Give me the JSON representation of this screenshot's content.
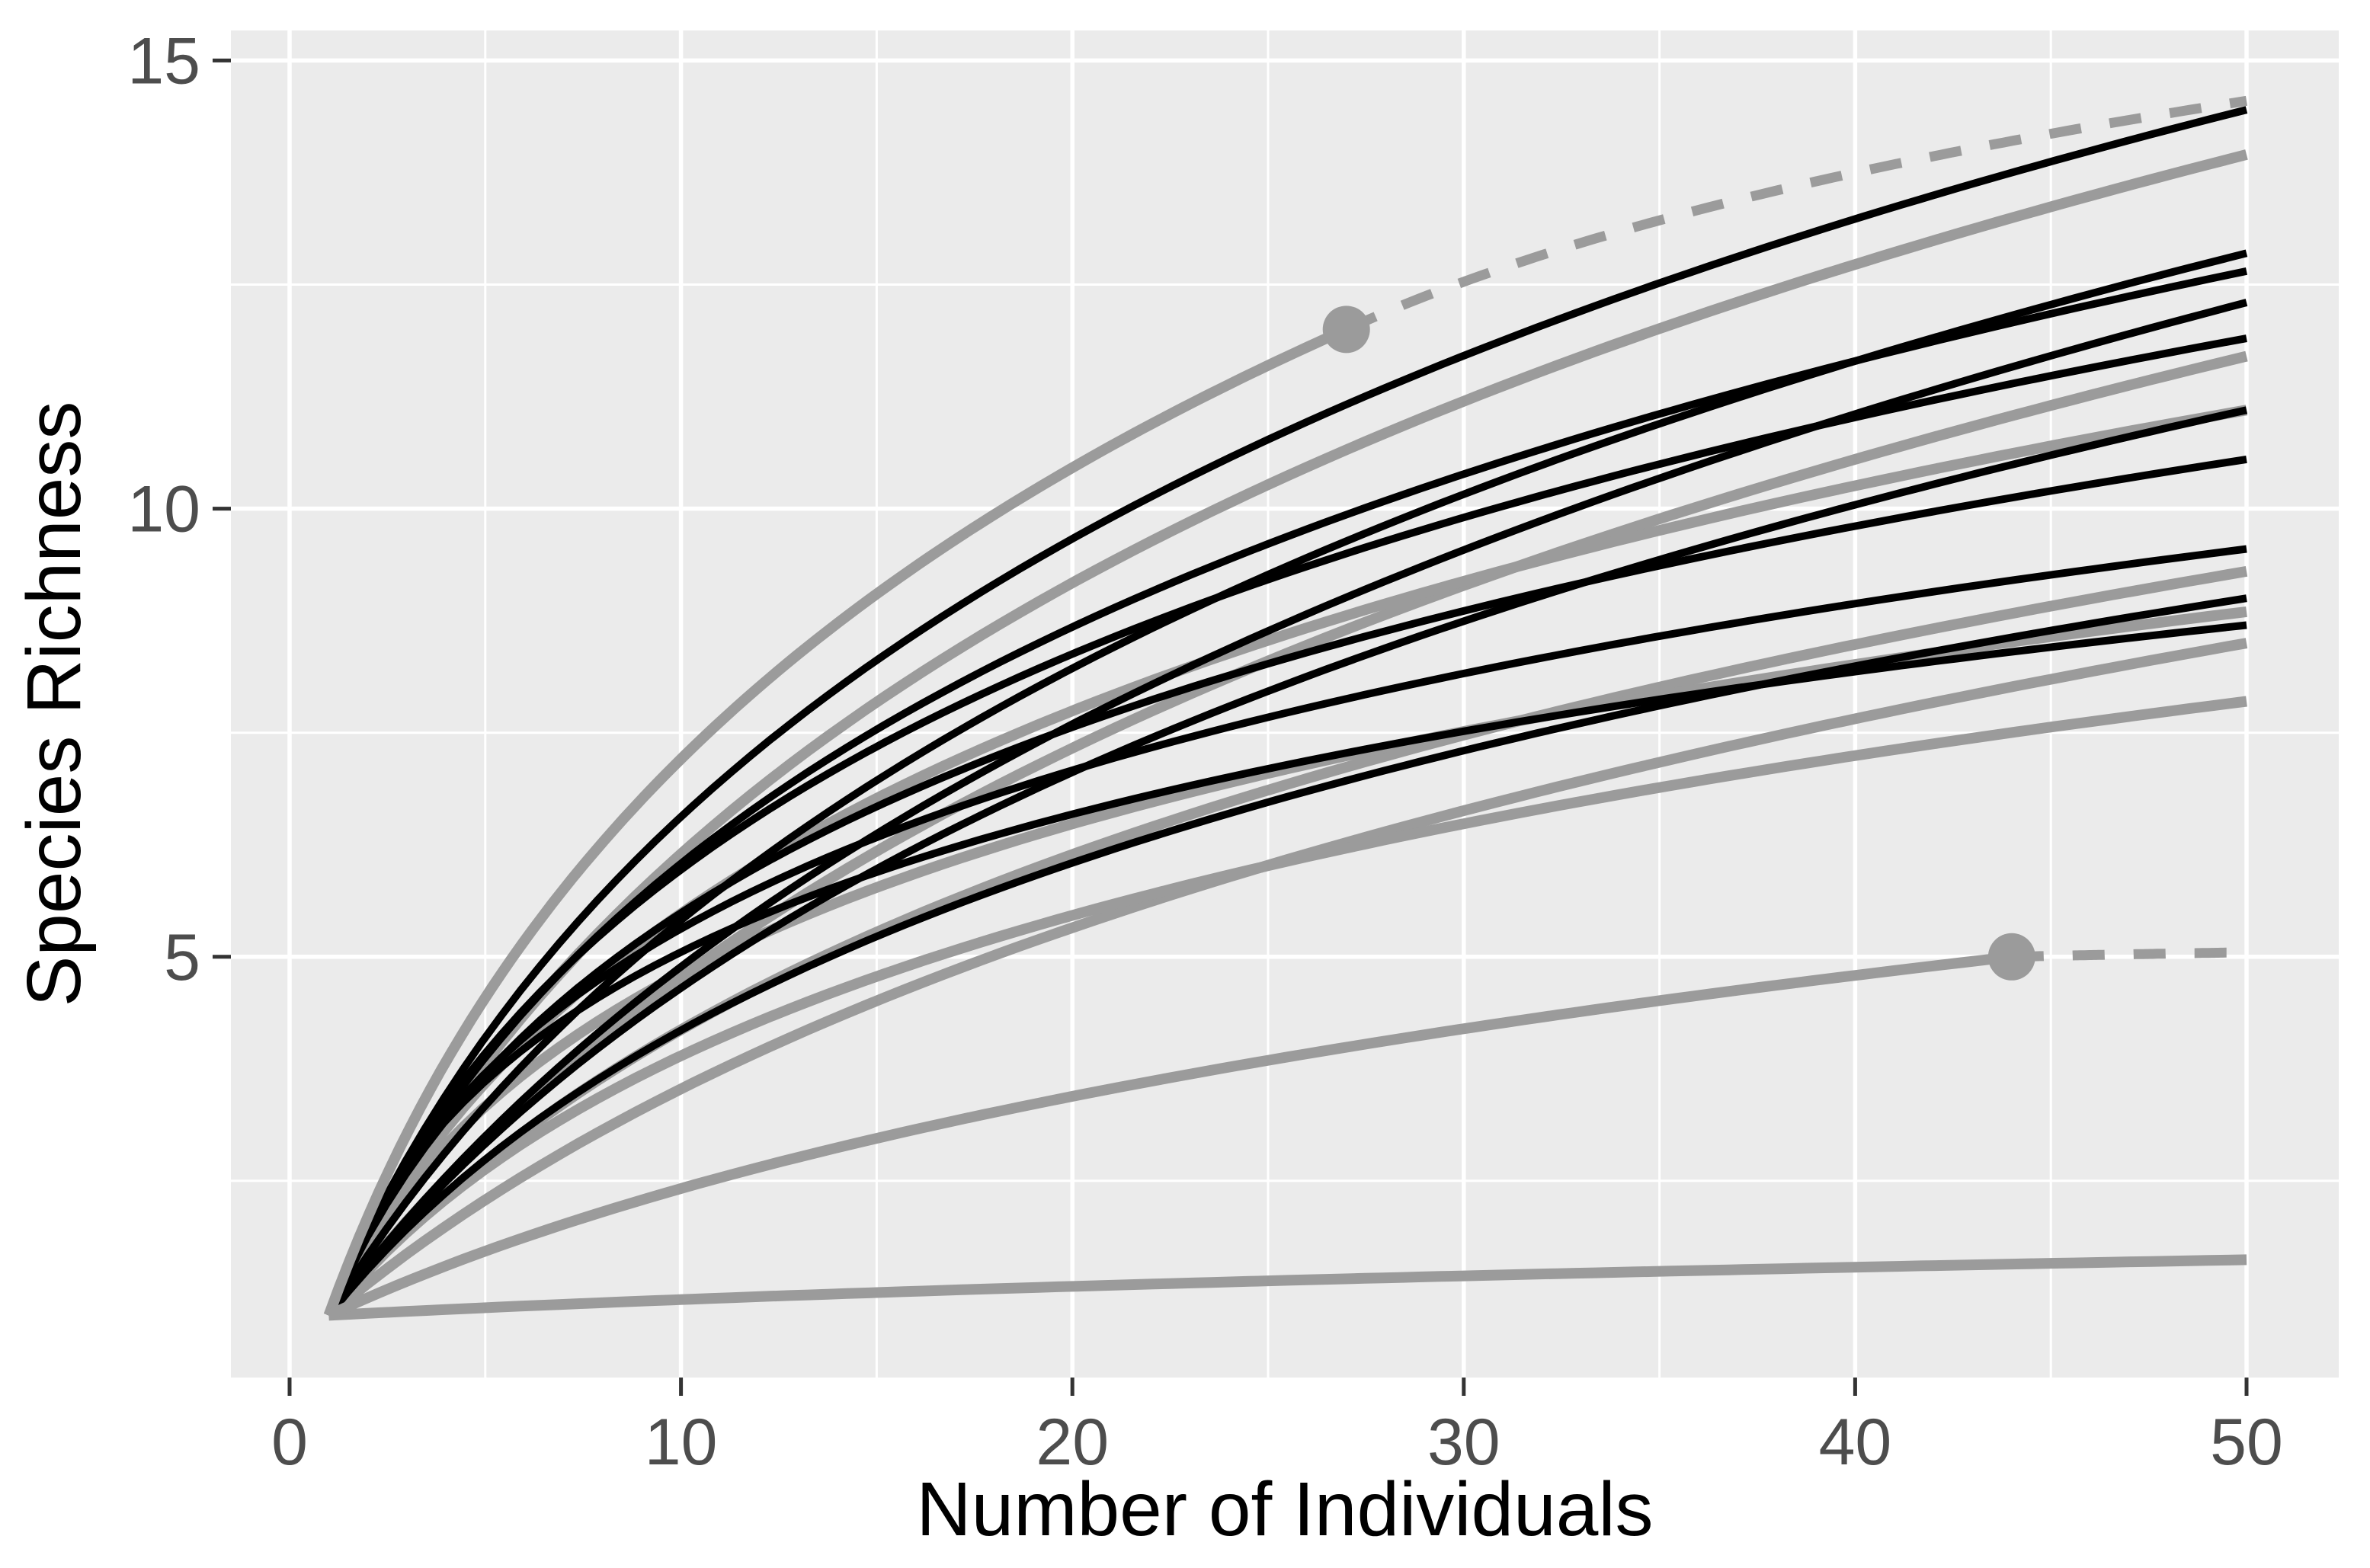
{
  "chart_data": {
    "type": "line",
    "title": "",
    "xlabel": "Number of Individuals",
    "ylabel": "Species Richness",
    "x_ticks": [
      0,
      10,
      20,
      30,
      40,
      50
    ],
    "y_ticks": [
      5,
      10,
      15
    ],
    "x_minor_gridlines": [
      5,
      15,
      25,
      35,
      45
    ],
    "y_minor_gridlines": [
      2.5,
      7.5,
      12.5
    ],
    "xlim": [
      -1.5,
      52.4
    ],
    "ylim": [
      0.3,
      15.34
    ],
    "grid": "on",
    "legend": "none",
    "colors": {
      "panel_background": "#EBEBEB",
      "gridline": "#FFFFFF",
      "black_series": "#000000",
      "grey_series": "#9B9B9B",
      "tick_text": "#4D4D4D",
      "tick_mark": "#333333",
      "axis_title_text": "#000000"
    },
    "description": "Individual-based rarefaction curves of species richness; solid lines are interpolated richness (black and grey site groups), dots mark observed sample size, dashed grey lines are extrapolations.",
    "curves": [
      {
        "name": "grey-1",
        "color": "grey",
        "style": "solid",
        "x": [
          1,
          50
        ],
        "y": [
          1,
          13.95
        ],
        "shape_b": 7
      },
      {
        "name": "grey-3",
        "color": "grey",
        "style": "solid",
        "x": [
          1,
          50
        ],
        "y": [
          1,
          11.7
        ],
        "shape_b": 11
      },
      {
        "name": "grey-4",
        "color": "grey",
        "style": "solid",
        "x": [
          1,
          50
        ],
        "y": [
          1,
          11.1
        ],
        "shape_b": 4.5
      },
      {
        "name": "grey-5",
        "color": "grey",
        "style": "solid",
        "x": [
          1,
          50
        ],
        "y": [
          1,
          9.3
        ],
        "shape_b": 8
      },
      {
        "name": "grey-6",
        "color": "grey",
        "style": "solid",
        "x": [
          1,
          50
        ],
        "y": [
          1,
          8.85
        ],
        "shape_b": 3
      },
      {
        "name": "grey-7",
        "color": "grey",
        "style": "solid",
        "x": [
          1,
          50
        ],
        "y": [
          1,
          8.5
        ],
        "shape_b": 13
      },
      {
        "name": "grey-8",
        "color": "grey",
        "style": "solid",
        "x": [
          1,
          50
        ],
        "y": [
          1,
          7.85
        ],
        "shape_b": 5.5
      },
      {
        "name": "grey-10",
        "color": "grey",
        "style": "solid",
        "x": [
          1,
          50
        ],
        "y": [
          1,
          1.62
        ],
        "shape_b": 25
      },
      {
        "name": "black-1",
        "color": "black",
        "style": "solid",
        "x": [
          1,
          50
        ],
        "y": [
          1,
          14.45
        ],
        "shape_b": 6
      },
      {
        "name": "black-2",
        "color": "black",
        "style": "solid",
        "x": [
          1,
          50
        ],
        "y": [
          1,
          12.85
        ],
        "shape_b": 9
      },
      {
        "name": "black-3",
        "color": "black",
        "style": "solid",
        "x": [
          1,
          50
        ],
        "y": [
          1,
          12.65
        ],
        "shape_b": 5
      },
      {
        "name": "black-4",
        "color": "black",
        "style": "solid",
        "x": [
          1,
          50
        ],
        "y": [
          1,
          12.3
        ],
        "shape_b": 12
      },
      {
        "name": "black-5",
        "color": "black",
        "style": "solid",
        "x": [
          1,
          50
        ],
        "y": [
          1,
          11.9
        ],
        "shape_b": 4
      },
      {
        "name": "black-6",
        "color": "black",
        "style": "solid",
        "x": [
          1,
          50
        ],
        "y": [
          1,
          11.1
        ],
        "shape_b": 10
      },
      {
        "name": "black-7",
        "color": "black",
        "style": "solid",
        "x": [
          1,
          50
        ],
        "y": [
          1,
          10.55
        ],
        "shape_b": 3.5
      },
      {
        "name": "black-8",
        "color": "black",
        "style": "solid",
        "x": [
          1,
          50
        ],
        "y": [
          1,
          9.55
        ],
        "shape_b": 2.5
      },
      {
        "name": "black-9",
        "color": "black",
        "style": "solid",
        "x": [
          1,
          50
        ],
        "y": [
          1,
          9.0
        ],
        "shape_b": 7
      },
      {
        "name": "black-10",
        "color": "black",
        "style": "solid",
        "x": [
          1,
          50
        ],
        "y": [
          1,
          8.7
        ],
        "shape_b": 2
      },
      {
        "name": "grey-2-rarefaction",
        "color": "grey",
        "style": "solid",
        "x": [
          1,
          27
        ],
        "y": [
          1,
          12
        ],
        "shape_b": 5
      },
      {
        "name": "grey-9-rarefaction",
        "color": "grey",
        "style": "solid",
        "x": [
          1,
          44
        ],
        "y": [
          1,
          5
        ],
        "shape_b": 14
      },
      {
        "name": "grey-2-extrapolation",
        "color": "grey",
        "style": "dashed",
        "x": [
          27,
          50
        ],
        "y": [
          12,
          14.55
        ],
        "shape_b": 12
      },
      {
        "name": "grey-9-extrapolation",
        "color": "grey",
        "style": "dashed",
        "x": [
          44,
          50
        ],
        "y": [
          5,
          5.05
        ],
        "shape_b": 10
      }
    ],
    "points": [
      {
        "name": "observed-sample-dot-1",
        "x": 27,
        "y": 12
      },
      {
        "name": "observed-sample-dot-2",
        "x": 44,
        "y": 5
      }
    ]
  }
}
